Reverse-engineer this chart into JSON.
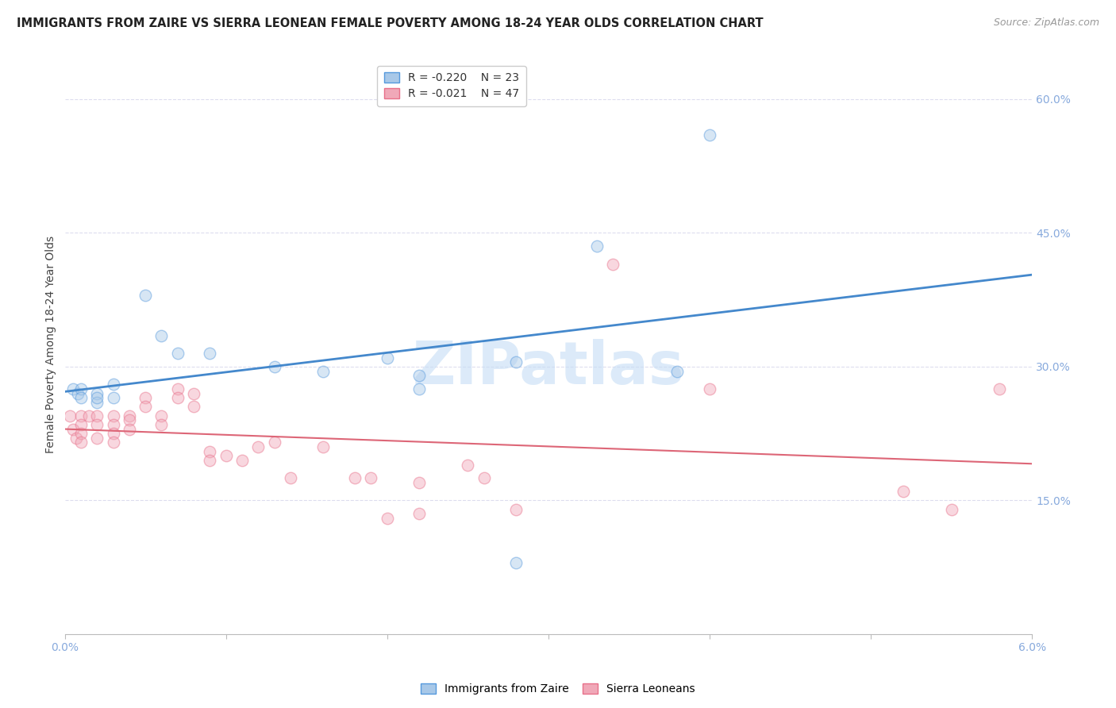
{
  "title": "IMMIGRANTS FROM ZAIRE VS SIERRA LEONEAN FEMALE POVERTY AMONG 18-24 YEAR OLDS CORRELATION CHART",
  "source": "Source: ZipAtlas.com",
  "xlabel": "",
  "ylabel": "Female Poverty Among 18-24 Year Olds",
  "xlim": [
    0.0,
    0.06
  ],
  "ylim": [
    0.0,
    0.65
  ],
  "xticks": [
    0.0,
    0.01,
    0.02,
    0.03,
    0.04,
    0.05,
    0.06
  ],
  "yticks": [
    0.0,
    0.15,
    0.3,
    0.45,
    0.6
  ],
  "xticklabels": [
    "0.0%",
    "",
    "",
    "",
    "",
    "",
    "6.0%"
  ],
  "blue_R": "-0.220",
  "blue_N": "23",
  "pink_R": "-0.021",
  "pink_N": "47",
  "blue_color": "#a8c8e8",
  "pink_color": "#f0a8b8",
  "blue_edge_color": "#5599dd",
  "pink_edge_color": "#e8708a",
  "blue_line_color": "#4488cc",
  "pink_line_color": "#dd6677",
  "grid_color": "#ddddee",
  "watermark": "ZIPatlas",
  "blue_x": [
    0.0005,
    0.0008,
    0.001,
    0.001,
    0.002,
    0.002,
    0.002,
    0.003,
    0.003,
    0.005,
    0.006,
    0.007,
    0.009,
    0.013,
    0.016,
    0.02,
    0.022,
    0.022,
    0.028,
    0.033,
    0.038,
    0.04,
    0.028
  ],
  "blue_y": [
    0.275,
    0.27,
    0.275,
    0.265,
    0.27,
    0.26,
    0.265,
    0.28,
    0.265,
    0.38,
    0.335,
    0.315,
    0.315,
    0.3,
    0.295,
    0.31,
    0.29,
    0.275,
    0.305,
    0.435,
    0.295,
    0.56,
    0.08
  ],
  "pink_x": [
    0.0003,
    0.0005,
    0.0007,
    0.001,
    0.001,
    0.001,
    0.001,
    0.0015,
    0.002,
    0.002,
    0.002,
    0.003,
    0.003,
    0.003,
    0.003,
    0.004,
    0.004,
    0.004,
    0.005,
    0.005,
    0.006,
    0.006,
    0.007,
    0.007,
    0.008,
    0.008,
    0.009,
    0.009,
    0.01,
    0.011,
    0.012,
    0.013,
    0.014,
    0.016,
    0.018,
    0.019,
    0.02,
    0.022,
    0.022,
    0.025,
    0.026,
    0.028,
    0.034,
    0.04,
    0.052,
    0.055,
    0.058
  ],
  "pink_y": [
    0.245,
    0.23,
    0.22,
    0.245,
    0.235,
    0.225,
    0.215,
    0.245,
    0.245,
    0.235,
    0.22,
    0.245,
    0.235,
    0.225,
    0.215,
    0.245,
    0.24,
    0.23,
    0.265,
    0.255,
    0.245,
    0.235,
    0.275,
    0.265,
    0.27,
    0.255,
    0.205,
    0.195,
    0.2,
    0.195,
    0.21,
    0.215,
    0.175,
    0.21,
    0.175,
    0.175,
    0.13,
    0.17,
    0.135,
    0.19,
    0.175,
    0.14,
    0.415,
    0.275,
    0.16,
    0.14,
    0.275
  ],
  "title_fontsize": 10.5,
  "axis_label_fontsize": 10,
  "tick_fontsize": 10,
  "legend_fontsize": 10,
  "marker_size": 110,
  "marker_alpha": 0.45,
  "line_width": 2.0
}
